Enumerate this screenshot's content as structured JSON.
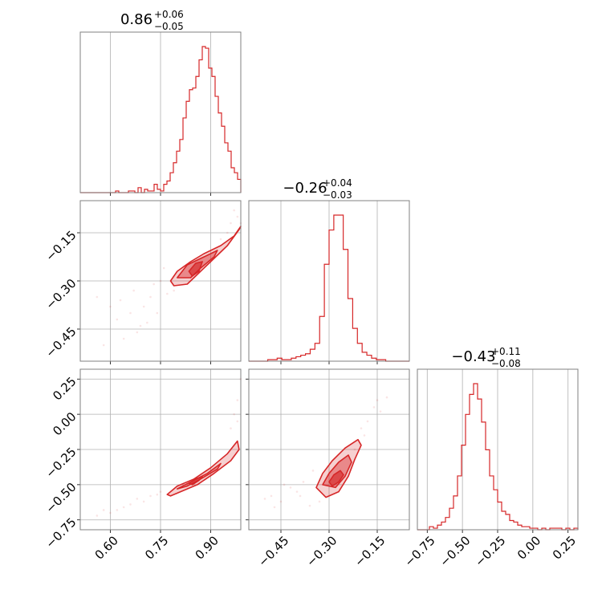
{
  "chart_data": {
    "type": "corner",
    "color": "#d62728",
    "parameters": [
      {
        "median": "0.86",
        "plus": "+0.06",
        "minus": "−0.05",
        "range": [
          0.51,
          0.99
        ]
      },
      {
        "median": "−0.26",
        "plus": "+0.04",
        "minus": "−0.03",
        "range": [
          -0.55,
          -0.05
        ]
      },
      {
        "median": "−0.43",
        "plus": "+0.11",
        "minus": "−0.08",
        "range": [
          -0.82,
          0.32
        ]
      }
    ],
    "ticks": [
      {
        "values": [
          0.6,
          0.75,
          0.9
        ],
        "labels": [
          "0.60",
          "0.75",
          "0.90"
        ]
      },
      {
        "values": [
          -0.45,
          -0.3,
          -0.15
        ],
        "labels": [
          "−0.45",
          "−0.30",
          "−0.15"
        ]
      },
      {
        "values": [
          -0.75,
          -0.5,
          -0.25,
          0.0,
          0.25
        ],
        "labels": [
          "−0.75",
          "−0.50",
          "−0.25",
          "0.00",
          "0.25"
        ]
      }
    ],
    "histograms": [
      [
        0,
        0,
        0,
        0,
        0,
        0,
        0,
        0,
        0,
        0,
        0,
        0.01,
        0,
        0,
        0,
        0.01,
        0.01,
        0,
        0.03,
        0,
        0.02,
        0.01,
        0.01,
        0.05,
        0.02,
        0.01,
        0.05,
        0.07,
        0.12,
        0.18,
        0.25,
        0.32,
        0.45,
        0.55,
        0.62,
        0.63,
        0.7,
        0.8,
        0.88,
        0.87,
        0.75,
        0.7,
        0.58,
        0.48,
        0.4,
        0.3,
        0.25,
        0.15,
        0.12,
        0.08
      ],
      [
        0,
        0,
        0,
        0,
        0.01,
        0.01,
        0.02,
        0.01,
        0.01,
        0.02,
        0.03,
        0.04,
        0.05,
        0.08,
        0.12,
        0.3,
        0.65,
        0.88,
        0.98,
        0.98,
        0.75,
        0.42,
        0.22,
        0.12,
        0.06,
        0.04,
        0.02,
        0.01,
        0.01,
        0,
        0,
        0,
        0,
        0
      ],
      [
        0,
        0,
        0,
        0.02,
        0.01,
        0.03,
        0.05,
        0.08,
        0.14,
        0.22,
        0.35,
        0.55,
        0.75,
        0.88,
        0.95,
        0.85,
        0.7,
        0.52,
        0.35,
        0.26,
        0.18,
        0.12,
        0.1,
        0.06,
        0.05,
        0.03,
        0.02,
        0.02,
        0.01,
        0.01,
        0,
        0.01,
        0,
        0.01,
        0.01,
        0.01,
        0,
        0.01,
        0,
        0.01
      ]
    ],
    "contours": [
      {
        "row": 1,
        "col": 0,
        "levels": [
          {
            "alpha": 0.22,
            "points": [
              [
                0.78,
                -0.3
              ],
              [
                0.8,
                -0.27
              ],
              [
                0.84,
                -0.24
              ],
              [
                0.88,
                -0.215
              ],
              [
                0.93,
                -0.19
              ],
              [
                0.97,
                -0.16
              ],
              [
                0.99,
                -0.13
              ],
              [
                0.985,
                -0.14
              ],
              [
                0.95,
                -0.19
              ],
              [
                0.9,
                -0.24
              ],
              [
                0.86,
                -0.28
              ],
              [
                0.83,
                -0.31
              ],
              [
                0.79,
                -0.315
              ]
            ]
          },
          {
            "alpha": 0.42,
            "points": [
              [
                0.8,
                -0.29
              ],
              [
                0.83,
                -0.25
              ],
              [
                0.88,
                -0.225
              ],
              [
                0.92,
                -0.205
              ],
              [
                0.91,
                -0.225
              ],
              [
                0.87,
                -0.26
              ],
              [
                0.84,
                -0.29
              ]
            ]
          },
          {
            "alpha": 0.65,
            "points": [
              [
                0.835,
                -0.27
              ],
              [
                0.855,
                -0.245
              ],
              [
                0.875,
                -0.24
              ],
              [
                0.865,
                -0.27
              ],
              [
                0.845,
                -0.285
              ]
            ]
          }
        ],
        "samples": [
          [
            0.66,
            -0.4
          ],
          [
            0.7,
            -0.38
          ],
          [
            0.72,
            -0.35
          ],
          [
            0.74,
            -0.4
          ],
          [
            0.69,
            -0.44
          ],
          [
            0.62,
            -0.42
          ],
          [
            0.6,
            -0.38
          ],
          [
            0.56,
            -0.35
          ],
          [
            0.64,
            -0.48
          ],
          [
            0.67,
            -0.33
          ],
          [
            0.73,
            -0.31
          ],
          [
            0.75,
            -0.3
          ],
          [
            0.76,
            -0.26
          ],
          [
            0.95,
            -0.15
          ],
          [
            0.98,
            -0.1
          ],
          [
            0.97,
            -0.08
          ],
          [
            0.99,
            -0.12
          ],
          [
            0.68,
            -0.46
          ],
          [
            0.71,
            -0.43
          ],
          [
            0.63,
            -0.36
          ],
          [
            0.58,
            -0.5
          ],
          [
            0.77,
            -0.34
          ],
          [
            0.79,
            -0.33
          ],
          [
            0.93,
            -0.17
          ],
          [
            0.96,
            -0.12
          ]
        ]
      },
      {
        "row": 2,
        "col": 0,
        "levels": [
          {
            "alpha": 0.22,
            "points": [
              [
                0.77,
                -0.57
              ],
              [
                0.8,
                -0.51
              ],
              [
                0.85,
                -0.46
              ],
              [
                0.9,
                -0.38
              ],
              [
                0.95,
                -0.28
              ],
              [
                0.98,
                -0.19
              ],
              [
                0.985,
                -0.25
              ],
              [
                0.96,
                -0.33
              ],
              [
                0.91,
                -0.42
              ],
              [
                0.86,
                -0.5
              ],
              [
                0.81,
                -0.55
              ],
              [
                0.78,
                -0.58
              ]
            ]
          },
          {
            "alpha": 0.42,
            "points": [
              [
                0.8,
                -0.53
              ],
              [
                0.84,
                -0.48
              ],
              [
                0.89,
                -0.42
              ],
              [
                0.93,
                -0.35
              ],
              [
                0.92,
                -0.39
              ],
              [
                0.87,
                -0.46
              ],
              [
                0.83,
                -0.51
              ]
            ]
          },
          {
            "alpha": 0.65,
            "points": [
              [
                0.835,
                -0.49
              ],
              [
                0.86,
                -0.455
              ],
              [
                0.875,
                -0.445
              ],
              [
                0.865,
                -0.47
              ],
              [
                0.845,
                -0.5
              ]
            ]
          }
        ],
        "samples": [
          [
            0.62,
            -0.68
          ],
          [
            0.66,
            -0.64
          ],
          [
            0.7,
            -0.62
          ],
          [
            0.72,
            -0.58
          ],
          [
            0.56,
            -0.72
          ],
          [
            0.6,
            -0.7
          ],
          [
            0.74,
            -0.57
          ],
          [
            0.68,
            -0.6
          ],
          [
            0.97,
            0.0
          ],
          [
            0.98,
            0.1
          ],
          [
            0.99,
            0.25
          ],
          [
            0.96,
            -0.1
          ],
          [
            0.98,
            -0.05
          ],
          [
            0.64,
            -0.66
          ],
          [
            0.58,
            -0.68
          ],
          [
            0.75,
            -0.55
          ]
        ]
      },
      {
        "row": 2,
        "col": 1,
        "levels": [
          {
            "alpha": 0.22,
            "points": [
              [
                -0.34,
                -0.52
              ],
              [
                -0.32,
                -0.42
              ],
              [
                -0.29,
                -0.33
              ],
              [
                -0.25,
                -0.24
              ],
              [
                -0.21,
                -0.18
              ],
              [
                -0.2,
                -0.22
              ],
              [
                -0.22,
                -0.32
              ],
              [
                -0.24,
                -0.44
              ],
              [
                -0.27,
                -0.55
              ],
              [
                -0.31,
                -0.59
              ]
            ]
          },
          {
            "alpha": 0.42,
            "points": [
              [
                -0.32,
                -0.5
              ],
              [
                -0.3,
                -0.42
              ],
              [
                -0.27,
                -0.34
              ],
              [
                -0.24,
                -0.29
              ],
              [
                -0.23,
                -0.34
              ],
              [
                -0.25,
                -0.44
              ],
              [
                -0.28,
                -0.52
              ]
            ]
          },
          {
            "alpha": 0.65,
            "points": [
              [
                -0.3,
                -0.48
              ],
              [
                -0.285,
                -0.43
              ],
              [
                -0.265,
                -0.4
              ],
              [
                -0.255,
                -0.43
              ],
              [
                -0.27,
                -0.48
              ],
              [
                -0.29,
                -0.51
              ]
            ]
          }
        ],
        "samples": [
          [
            -0.45,
            -0.62
          ],
          [
            -0.48,
            -0.58
          ],
          [
            -0.4,
            -0.55
          ],
          [
            -0.38,
            -0.48
          ],
          [
            -0.42,
            -0.52
          ],
          [
            -0.5,
            -0.6
          ],
          [
            -0.36,
            -0.65
          ],
          [
            -0.2,
            -0.1
          ],
          [
            -0.18,
            -0.05
          ],
          [
            -0.16,
            0.05
          ],
          [
            -0.15,
            0.1
          ],
          [
            -0.12,
            0.12
          ],
          [
            -0.14,
            0.02
          ],
          [
            -0.22,
            -0.25
          ],
          [
            -0.19,
            -0.15
          ],
          [
            -0.35,
            -0.4
          ],
          [
            -0.33,
            -0.62
          ],
          [
            -0.44,
            -0.5
          ],
          [
            -0.47,
            -0.66
          ],
          [
            -0.39,
            -0.58
          ]
        ]
      }
    ]
  }
}
